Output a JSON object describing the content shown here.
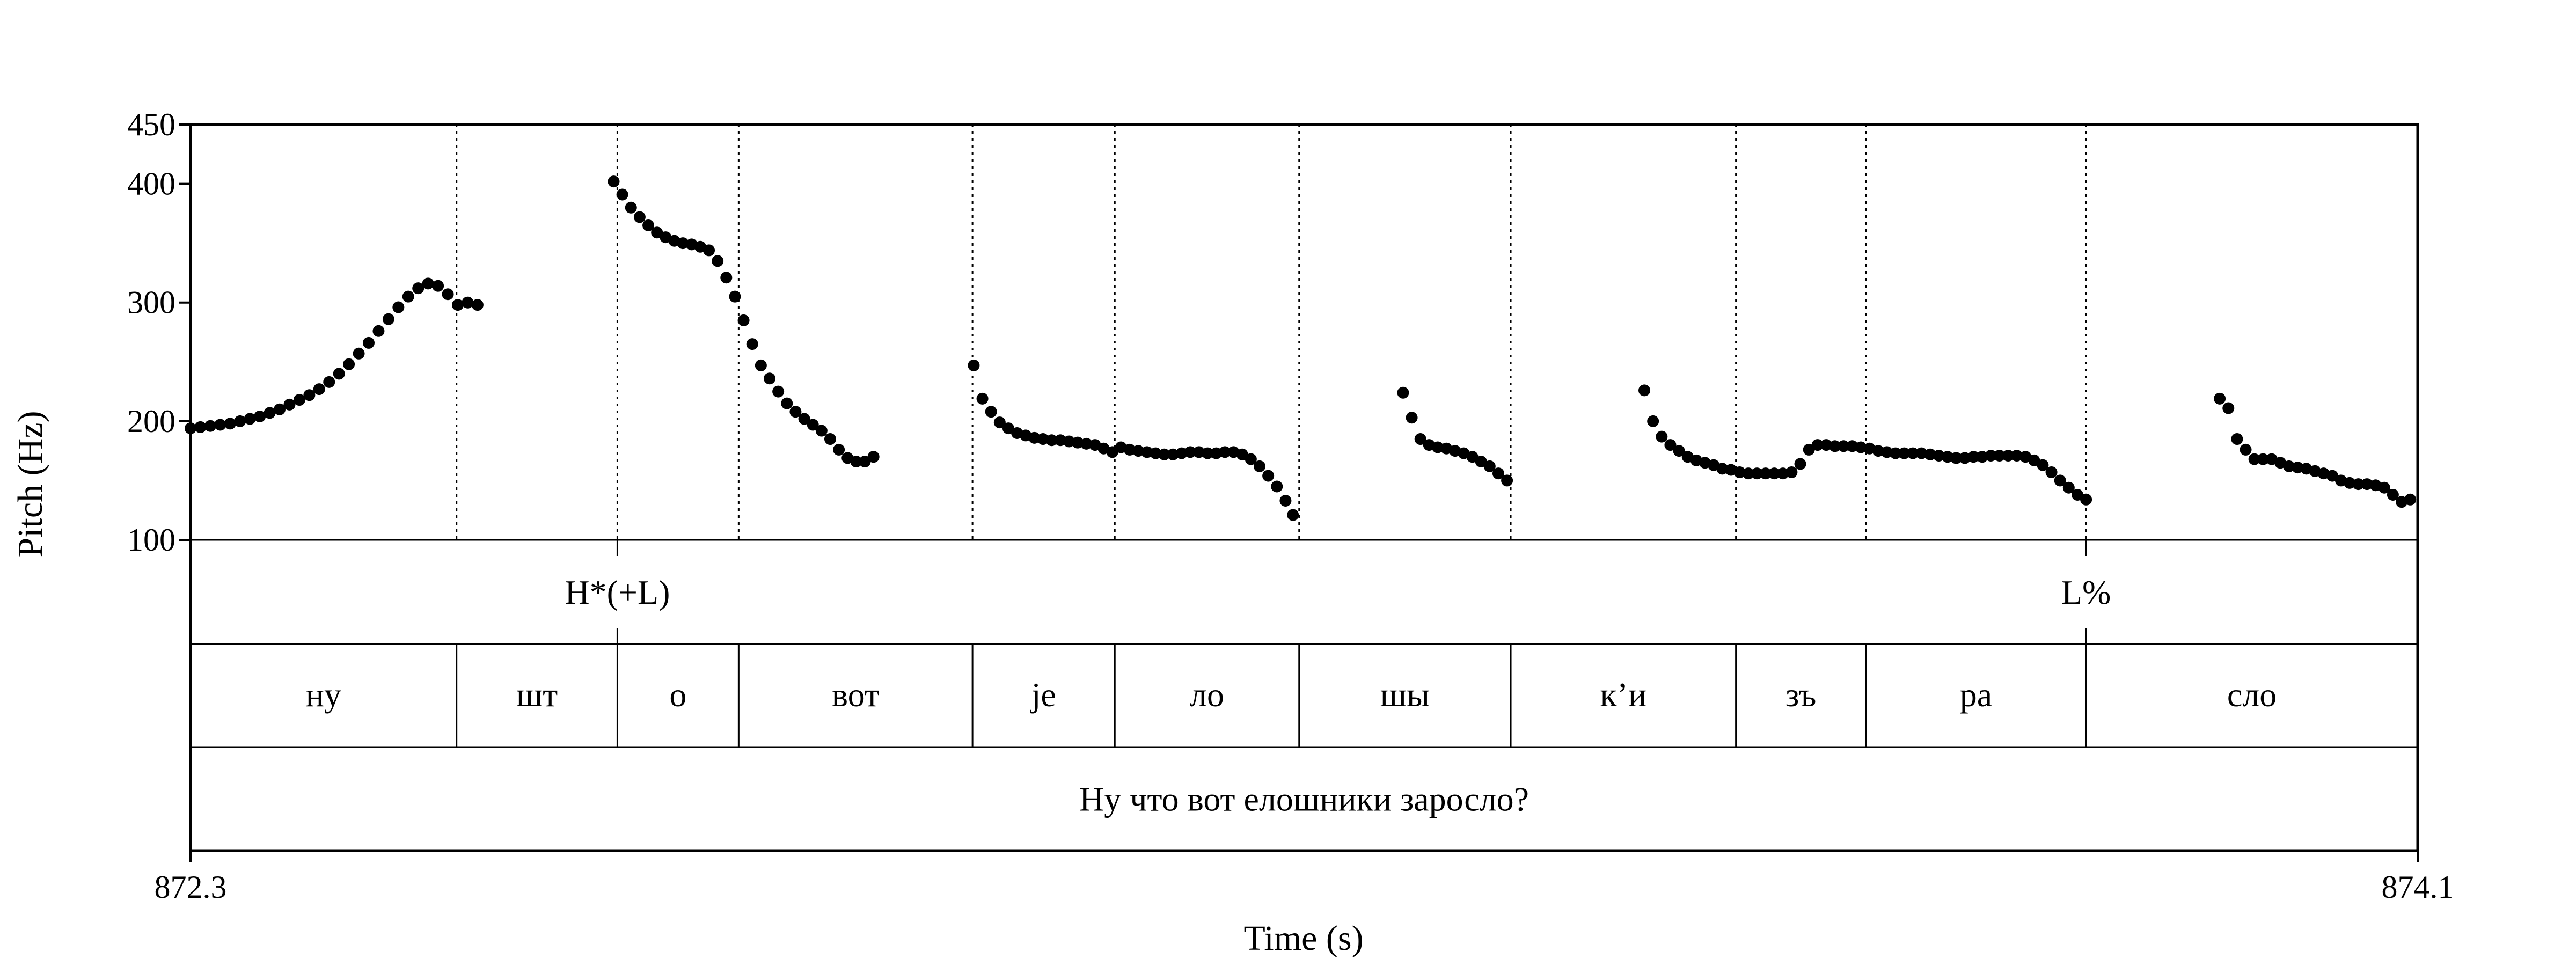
{
  "chart_data": {
    "type": "scatter",
    "xlabel": "Time (s)",
    "ylabel": "Pitch (Hz)",
    "x_range": [
      872.3,
      874.1
    ],
    "x_tick_labels": [
      "872.3",
      "874.1"
    ],
    "ylim": [
      100,
      450
    ],
    "y_ticks": [
      100,
      200,
      300,
      400,
      450
    ],
    "boundaries": [
      872.515,
      872.645,
      872.743,
      872.932,
      873.047,
      873.196,
      873.367,
      873.549,
      873.654,
      873.832
    ],
    "tones": [
      {
        "label": "H*(+L)",
        "time": 872.645
      },
      {
        "label": "L%",
        "time": 873.832
      }
    ],
    "syllables": [
      {
        "label": "ну",
        "start": 872.3,
        "end": 872.515
      },
      {
        "label": "шт",
        "start": 872.515,
        "end": 872.645
      },
      {
        "label": "о",
        "start": 872.645,
        "end": 872.743
      },
      {
        "label": "вот",
        "start": 872.743,
        "end": 872.932
      },
      {
        "label": "je",
        "start": 872.932,
        "end": 873.047
      },
      {
        "label": "ло",
        "start": 873.047,
        "end": 873.196
      },
      {
        "label": "шы",
        "start": 873.196,
        "end": 873.367
      },
      {
        "label": "к’и",
        "start": 873.367,
        "end": 873.549
      },
      {
        "label": "зъ",
        "start": 873.549,
        "end": 873.654
      },
      {
        "label": "ра",
        "start": 873.654,
        "end": 873.832
      },
      {
        "label": "сло",
        "start": 873.832,
        "end": 874.1
      }
    ],
    "sentence": "Ну что вот елошники заросло?",
    "series": [
      {
        "points": [
          [
            872.3,
            194
          ],
          [
            872.308,
            195
          ],
          [
            872.316,
            196
          ],
          [
            872.324,
            197
          ],
          [
            872.332,
            198
          ],
          [
            872.34,
            200
          ],
          [
            872.348,
            202
          ],
          [
            872.356,
            204
          ],
          [
            872.364,
            207
          ],
          [
            872.372,
            210
          ],
          [
            872.38,
            214
          ],
          [
            872.388,
            218
          ],
          [
            872.396,
            222
          ],
          [
            872.404,
            227
          ],
          [
            872.412,
            233
          ],
          [
            872.42,
            240
          ],
          [
            872.428,
            248
          ],
          [
            872.436,
            257
          ],
          [
            872.444,
            266
          ],
          [
            872.452,
            276
          ],
          [
            872.46,
            286
          ],
          [
            872.468,
            296
          ],
          [
            872.476,
            305
          ],
          [
            872.484,
            312
          ],
          [
            872.492,
            316
          ],
          [
            872.5,
            314
          ],
          [
            872.508,
            307
          ],
          [
            872.516,
            298
          ],
          [
            872.524,
            300
          ],
          [
            872.532,
            298
          ],
          [
            872.642,
            402
          ],
          [
            872.649,
            391
          ],
          [
            872.656,
            380
          ],
          [
            872.663,
            372
          ],
          [
            872.67,
            365
          ],
          [
            872.677,
            359
          ],
          [
            872.684,
            355
          ],
          [
            872.691,
            352
          ],
          [
            872.698,
            350
          ],
          [
            872.705,
            349
          ],
          [
            872.712,
            347
          ],
          [
            872.719,
            344
          ],
          [
            872.726,
            335
          ],
          [
            872.733,
            321
          ],
          [
            872.74,
            305
          ],
          [
            872.747,
            285
          ],
          [
            872.754,
            265
          ],
          [
            872.761,
            247
          ],
          [
            872.768,
            236
          ],
          [
            872.775,
            225
          ],
          [
            872.782,
            215
          ],
          [
            872.789,
            208
          ],
          [
            872.796,
            202
          ],
          [
            872.803,
            197
          ],
          [
            872.81,
            192
          ],
          [
            872.817,
            185
          ],
          [
            872.824,
            176
          ],
          [
            872.831,
            169
          ],
          [
            872.838,
            166
          ],
          [
            872.845,
            166
          ],
          [
            872.852,
            170
          ],
          [
            872.933,
            247
          ],
          [
            872.94,
            219
          ],
          [
            872.947,
            208
          ],
          [
            872.954,
            199
          ],
          [
            872.961,
            194
          ],
          [
            872.968,
            190
          ],
          [
            872.975,
            188
          ],
          [
            872.982,
            186
          ],
          [
            872.989,
            185
          ],
          [
            872.996,
            184
          ],
          [
            873.003,
            184
          ],
          [
            873.01,
            183
          ],
          [
            873.017,
            182
          ],
          [
            873.024,
            181
          ],
          [
            873.031,
            180
          ],
          [
            873.038,
            177
          ],
          [
            873.045,
            174
          ],
          [
            873.052,
            178
          ],
          [
            873.059,
            176
          ],
          [
            873.066,
            175
          ],
          [
            873.073,
            174
          ],
          [
            873.08,
            173
          ],
          [
            873.087,
            172
          ],
          [
            873.094,
            172
          ],
          [
            873.101,
            173
          ],
          [
            873.108,
            174
          ],
          [
            873.115,
            174
          ],
          [
            873.122,
            173
          ],
          [
            873.129,
            173
          ],
          [
            873.136,
            174
          ],
          [
            873.143,
            174
          ],
          [
            873.15,
            172
          ],
          [
            873.157,
            168
          ],
          [
            873.164,
            162
          ],
          [
            873.171,
            154
          ],
          [
            873.178,
            145
          ],
          [
            873.185,
            133
          ],
          [
            873.191,
            121
          ],
          [
            873.28,
            224
          ],
          [
            873.287,
            203
          ],
          [
            873.294,
            185
          ],
          [
            873.301,
            180
          ],
          [
            873.308,
            178
          ],
          [
            873.315,
            177
          ],
          [
            873.322,
            175
          ],
          [
            873.329,
            173
          ],
          [
            873.336,
            170
          ],
          [
            873.343,
            166
          ],
          [
            873.35,
            162
          ],
          [
            873.357,
            156
          ],
          [
            873.364,
            150
          ],
          [
            873.475,
            226
          ],
          [
            873.482,
            200
          ],
          [
            873.489,
            187
          ],
          [
            873.496,
            180
          ],
          [
            873.503,
            175
          ],
          [
            873.51,
            170
          ],
          [
            873.517,
            167
          ],
          [
            873.524,
            165
          ],
          [
            873.531,
            163
          ],
          [
            873.538,
            160
          ],
          [
            873.545,
            159
          ],
          [
            873.552,
            157
          ],
          [
            873.559,
            156
          ],
          [
            873.566,
            156
          ],
          [
            873.573,
            156
          ],
          [
            873.58,
            156
          ],
          [
            873.587,
            156
          ],
          [
            873.594,
            157
          ],
          [
            873.601,
            164
          ],
          [
            873.608,
            176
          ],
          [
            873.615,
            180
          ],
          [
            873.622,
            180
          ],
          [
            873.629,
            179
          ],
          [
            873.636,
            179
          ],
          [
            873.643,
            179
          ],
          [
            873.65,
            178
          ],
          [
            873.657,
            177
          ],
          [
            873.664,
            175
          ],
          [
            873.671,
            174
          ],
          [
            873.678,
            173
          ],
          [
            873.685,
            173
          ],
          [
            873.692,
            173
          ],
          [
            873.699,
            173
          ],
          [
            873.706,
            172
          ],
          [
            873.713,
            171
          ],
          [
            873.72,
            170
          ],
          [
            873.727,
            169
          ],
          [
            873.734,
            169
          ],
          [
            873.741,
            170
          ],
          [
            873.748,
            170
          ],
          [
            873.755,
            171
          ],
          [
            873.762,
            171
          ],
          [
            873.769,
            171
          ],
          [
            873.776,
            171
          ],
          [
            873.783,
            170
          ],
          [
            873.79,
            167
          ],
          [
            873.797,
            163
          ],
          [
            873.804,
            157
          ],
          [
            873.811,
            150
          ],
          [
            873.818,
            144
          ],
          [
            873.825,
            138
          ],
          [
            873.832,
            134
          ],
          [
            873.94,
            219
          ],
          [
            873.947,
            211
          ],
          [
            873.954,
            185
          ],
          [
            873.961,
            176
          ],
          [
            873.968,
            168
          ],
          [
            873.975,
            168
          ],
          [
            873.982,
            168
          ],
          [
            873.989,
            165
          ],
          [
            873.996,
            162
          ],
          [
            874.003,
            161
          ],
          [
            874.01,
            160
          ],
          [
            874.017,
            158
          ],
          [
            874.024,
            156
          ],
          [
            874.031,
            154
          ],
          [
            874.038,
            150
          ],
          [
            874.045,
            148
          ],
          [
            874.052,
            147
          ],
          [
            874.059,
            147
          ],
          [
            874.066,
            146
          ],
          [
            874.073,
            144
          ],
          [
            874.08,
            138
          ],
          [
            874.087,
            132
          ],
          [
            874.094,
            134
          ]
        ]
      }
    ]
  }
}
